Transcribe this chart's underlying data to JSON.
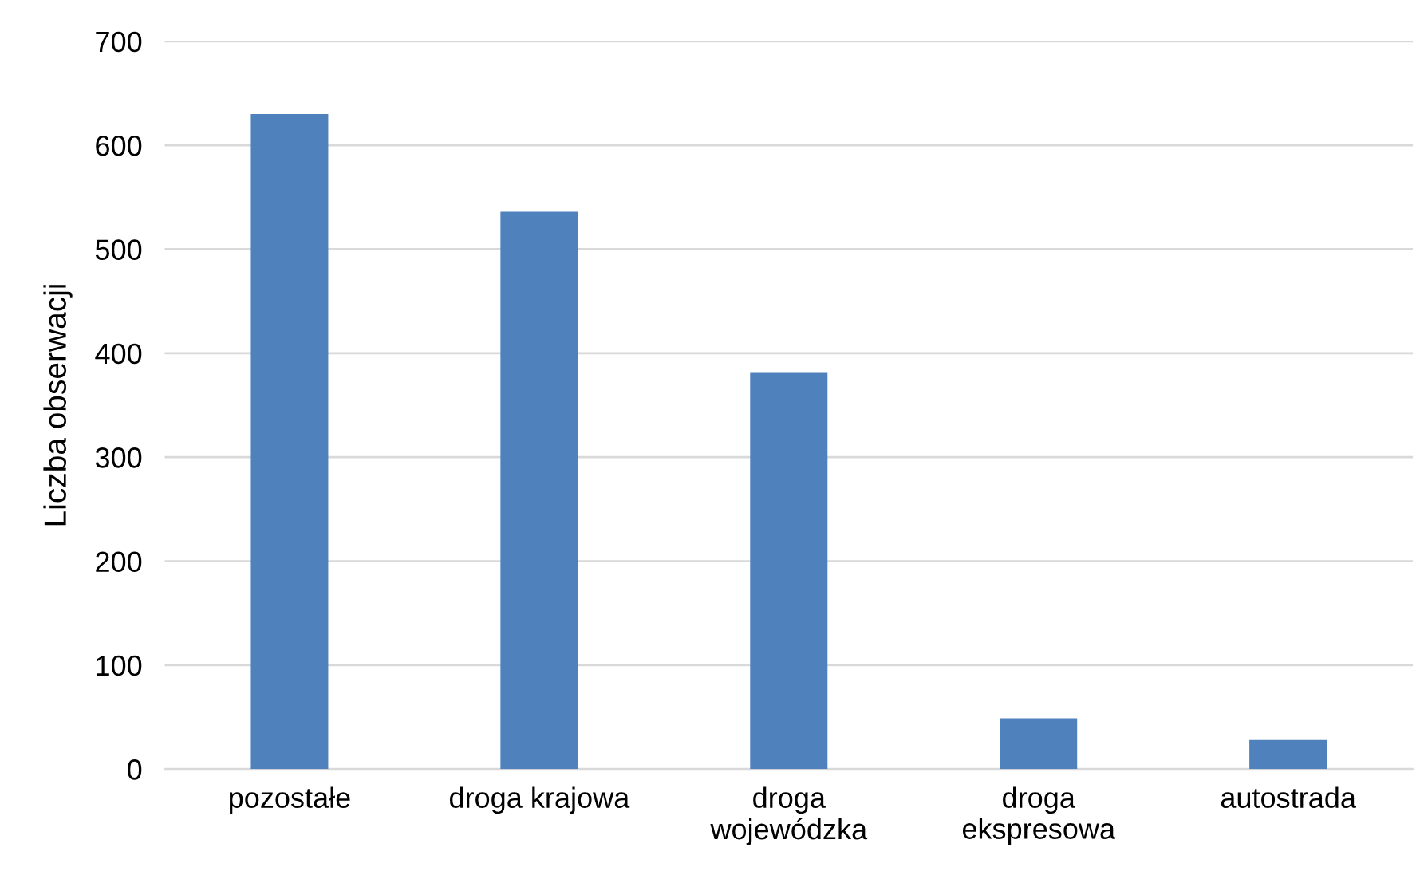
{
  "chart_data": {
    "type": "bar",
    "ylabel": "Liczba obserwacji",
    "categories": [
      "pozostałe",
      "droga krajowa",
      "droga wojewódzka",
      "droga ekspresowa",
      "autostrada"
    ],
    "values": [
      630,
      536,
      381,
      49,
      28
    ],
    "color": "#4f81bd",
    "ylim": [
      0,
      700
    ],
    "yticks": [
      0,
      100,
      200,
      300,
      400,
      500,
      600,
      700
    ],
    "grid": "y",
    "legend": false
  }
}
